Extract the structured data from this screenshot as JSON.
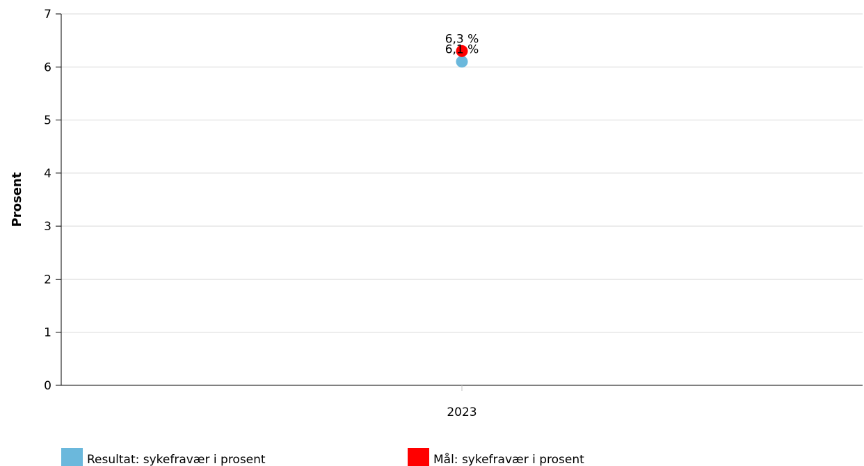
{
  "chart_data": {
    "type": "scatter",
    "categories": [
      "2023"
    ],
    "ylabel": "Prosent",
    "ylim": [
      0,
      7
    ],
    "yticks": [
      "0",
      "1",
      "2",
      "3",
      "4",
      "5",
      "6",
      "7"
    ],
    "grid": true,
    "legend_position": "bottom",
    "series": [
      {
        "name": "Resultat: sykefravær i prosent",
        "color": "#6bb8dc",
        "values": [
          6.1
        ],
        "labels": [
          "6,1 %"
        ]
      },
      {
        "name": "Mål: sykefravær i prosent",
        "color": "#ff0000",
        "values": [
          6.3
        ],
        "labels": [
          "6,3 %"
        ]
      }
    ]
  }
}
